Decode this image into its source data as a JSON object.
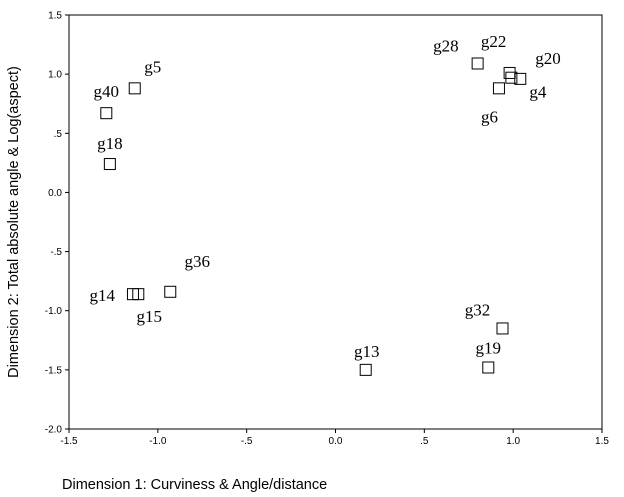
{
  "chart_data": {
    "type": "scatter",
    "title": "",
    "xlabel": "Dimension 1: Curviness & Angle/distance",
    "ylabel": "Dimension 2: Total absolute angle & Log(aspect)",
    "xlim": [
      -1.5,
      1.5
    ],
    "ylim": [
      -2.0,
      1.5
    ],
    "xticks": [
      "-1.5",
      "-1.0",
      "-.5",
      "0.0",
      ".5",
      "1.0",
      "1.5"
    ],
    "yticks": [
      "1.5",
      "1.0",
      ".5",
      "0.0",
      "-.5",
      "-1.0",
      "-1.5",
      "-2.0"
    ],
    "marker": "open-square",
    "grid": false,
    "legend": "none",
    "points": [
      {
        "label": "g5",
        "x": -1.13,
        "y": 0.88
      },
      {
        "label": "g40",
        "x": -1.29,
        "y": 0.67
      },
      {
        "label": "g18",
        "x": -1.27,
        "y": 0.24
      },
      {
        "label": "g22",
        "x": 0.98,
        "y": 1.01
      },
      {
        "label": "g28",
        "x": 0.8,
        "y": 1.09
      },
      {
        "label": "g20",
        "x": 1.04,
        "y": 0.96
      },
      {
        "label": "g6",
        "x": 0.92,
        "y": 0.88
      },
      {
        "label": "g4",
        "x": 0.99,
        "y": 0.97
      },
      {
        "label": "g36",
        "x": -0.93,
        "y": -0.84
      },
      {
        "label": "g14",
        "x": -1.14,
        "y": -0.86
      },
      {
        "label": "g15",
        "x": -1.11,
        "y": -0.86
      },
      {
        "label": "g32",
        "x": 0.94,
        "y": -1.15
      },
      {
        "label": "g19",
        "x": 0.86,
        "y": -1.48
      },
      {
        "label": "g13",
        "x": 0.17,
        "y": -1.5
      }
    ]
  }
}
